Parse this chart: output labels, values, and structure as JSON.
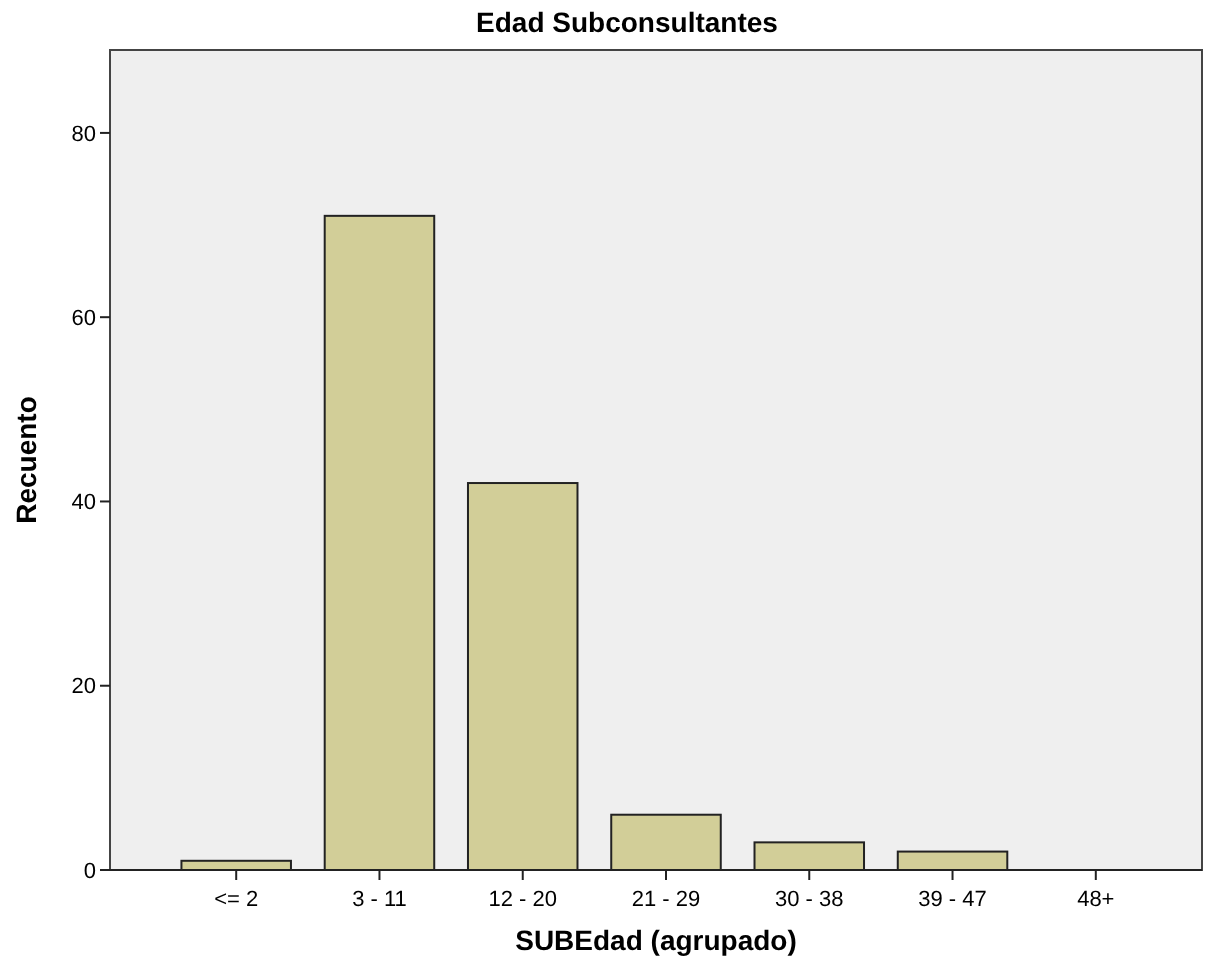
{
  "chart_data": {
    "type": "bar",
    "title": "Edad Subconsultantes",
    "xlabel": "SUBEdad (agrupado)",
    "ylabel": "Recuento",
    "categories": [
      "<= 2",
      "3 - 11",
      "12 - 20",
      "21 - 29",
      "30 - 38",
      "39 - 47",
      "48+"
    ],
    "values": [
      1,
      71,
      42,
      6,
      3,
      2,
      0
    ],
    "color": "#d2ce98",
    "ylim": [
      0,
      89
    ],
    "yticks": [
      0,
      20,
      40,
      60,
      80
    ],
    "grid": false
  }
}
